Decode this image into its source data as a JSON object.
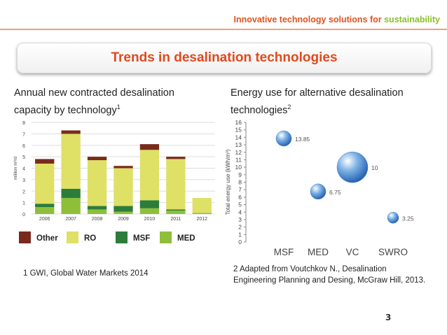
{
  "header": {
    "text_main": "Innovative technology solutions for ",
    "text_accent": "sustainability"
  },
  "slide_title": "Trends in desalination technologies",
  "left": {
    "caption_line1": "Annual new contracted desalination",
    "caption_line2": "capacity by technology",
    "caption_sup": "1",
    "footnote": "1 GWI, Global Water Markets 2014"
  },
  "right": {
    "caption_line1": "Energy use for alternative desalination",
    "caption_line2": "technologies",
    "caption_sup": "2",
    "footnote_line1": "2 Adapted from Voutchkov N., Desalination",
    "footnote_line2": "Engineering Planning and Desing, McGraw Hill, 2013."
  },
  "page_number": "3",
  "chart_data": [
    {
      "type": "bar",
      "stacked": true,
      "ylabel": "million m³/d",
      "ylim": [
        0,
        8
      ],
      "yticks": [
        0,
        1,
        2,
        3,
        4,
        5,
        6,
        7,
        8
      ],
      "categories": [
        "2006",
        "2007",
        "2008",
        "2009",
        "2010",
        "2011",
        "2012"
      ],
      "series": [
        {
          "name": "MED",
          "color": "#8fbf3a",
          "values": [
            0.6,
            1.4,
            0.4,
            0.2,
            0.5,
            0.3,
            0.1
          ]
        },
        {
          "name": "MSF",
          "color": "#2c7d3a",
          "values": [
            0.3,
            0.8,
            0.3,
            0.5,
            0.7,
            0.1,
            0.0
          ]
        },
        {
          "name": "RO",
          "color": "#dfe066",
          "values": [
            3.5,
            4.8,
            4.0,
            3.3,
            4.4,
            4.4,
            1.3
          ]
        },
        {
          "name": "Other",
          "color": "#7a2a1c",
          "values": [
            0.4,
            0.3,
            0.3,
            0.2,
            0.5,
            0.2,
            0.0
          ]
        }
      ],
      "legend": [
        "Other",
        "RO",
        "MSF",
        "MED"
      ],
      "legend_position": "bottom"
    },
    {
      "type": "scatter",
      "variant": "bubble",
      "ylabel": "Total energy use (kWh/m³)",
      "ylim": [
        0,
        16
      ],
      "yticks": [
        0,
        1,
        2,
        3,
        4,
        5,
        6,
        7,
        8,
        9,
        10,
        11,
        12,
        13,
        14,
        15,
        16
      ],
      "categories": [
        "MSF",
        "MED",
        "VC",
        "SWRO"
      ],
      "points": [
        {
          "category": "MSF",
          "x": 1,
          "y": 13.85,
          "label": "13.85"
        },
        {
          "category": "MED",
          "x": 2,
          "y": 6.75,
          "label": "6.75"
        },
        {
          "category": "VC",
          "x": 3,
          "y": 10,
          "label": "10"
        },
        {
          "category": "SWRO",
          "x": 4,
          "y": 3.25,
          "label": "3.25"
        }
      ]
    }
  ]
}
